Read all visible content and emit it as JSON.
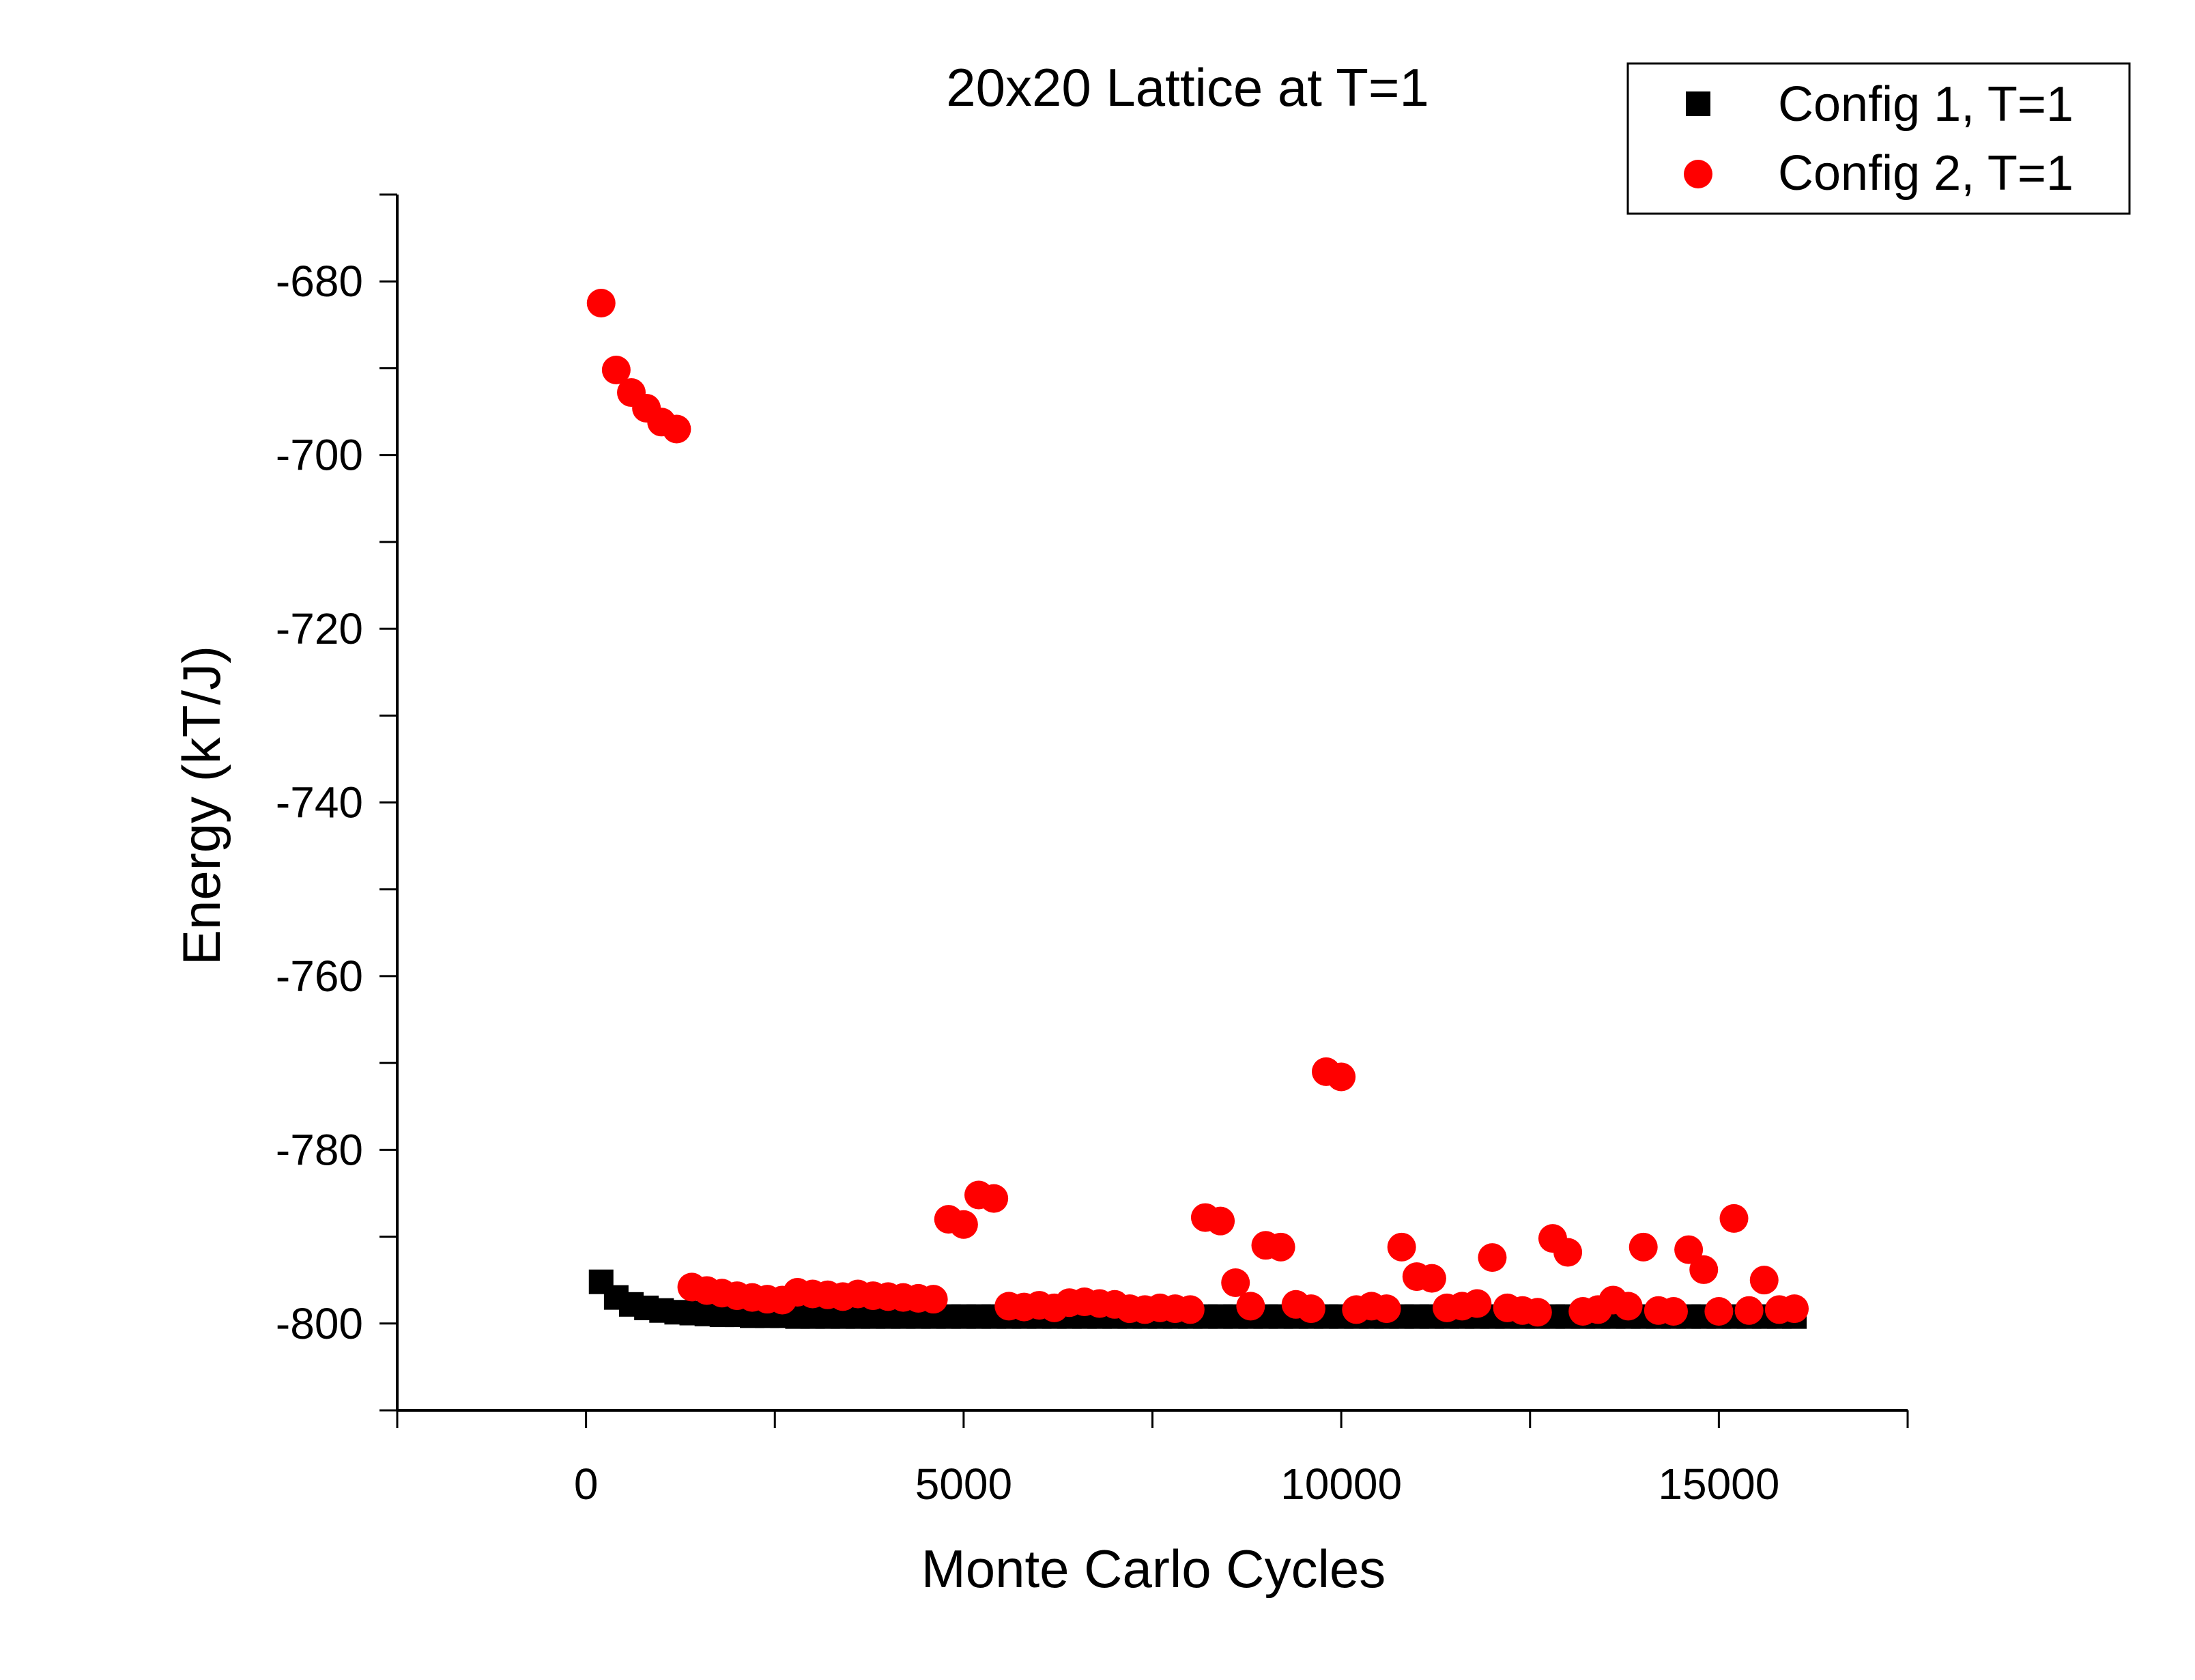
{
  "chart_data": {
    "type": "scatter",
    "title": "20x20 Lattice at T=1",
    "xlabel": "Monte Carlo Cycles",
    "ylabel": "Energy (kT/J)",
    "xlim": [
      -2500,
      17500
    ],
    "ylim": [
      -810,
      -670
    ],
    "xticks": [
      0,
      5000,
      10000,
      15000
    ],
    "yticks": [
      -680,
      -700,
      -720,
      -740,
      -760,
      -780,
      -800
    ],
    "grid": false,
    "legend_position": "top-right",
    "series": [
      {
        "name": "Config 1, T=1",
        "marker": "square",
        "color": "#000000",
        "x": [
          200,
          400,
          600,
          800,
          1000,
          1200,
          1400,
          1600,
          1800,
          2000,
          2200,
          2400,
          2600,
          2800,
          3000,
          3200,
          3400,
          3600,
          3800,
          4000,
          4200,
          4400,
          4600,
          4800,
          5000,
          5200,
          5400,
          5600,
          5800,
          6000,
          6200,
          6400,
          6600,
          6800,
          7000,
          7200,
          7400,
          7600,
          7800,
          8000,
          8200,
          8400,
          8600,
          8800,
          9000,
          9200,
          9400,
          9600,
          9800,
          10000,
          10200,
          10400,
          10600,
          10800,
          11000,
          11200,
          11400,
          11600,
          11800,
          12000,
          12200,
          12400,
          12600,
          12800,
          13000,
          13200,
          13400,
          13600,
          13800,
          14000,
          14200,
          14400,
          14600,
          14800,
          15000,
          15200,
          15400,
          15600,
          15800,
          16000
        ],
        "y": [
          -795.2,
          -797.0,
          -797.8,
          -798.2,
          -798.5,
          -798.7,
          -798.8,
          -798.9,
          -799.0,
          -799.0,
          -799.1,
          -799.1,
          -799.1,
          -799.2,
          -799.2,
          -799.2,
          -799.2,
          -799.2,
          -799.2,
          -799.2,
          -799.2,
          -799.2,
          -799.2,
          -799.2,
          -799.2,
          -799.2,
          -799.2,
          -799.2,
          -799.2,
          -799.2,
          -799.2,
          -799.2,
          -799.2,
          -799.2,
          -799.2,
          -799.2,
          -799.2,
          -799.2,
          -799.2,
          -799.2,
          -799.2,
          -799.2,
          -799.2,
          -799.2,
          -799.2,
          -799.2,
          -799.2,
          -799.2,
          -799.2,
          -799.2,
          -799.2,
          -799.2,
          -799.2,
          -799.2,
          -799.2,
          -799.2,
          -799.2,
          -799.2,
          -799.2,
          -799.2,
          -799.2,
          -799.2,
          -799.2,
          -799.2,
          -799.2,
          -799.2,
          -799.2,
          -799.2,
          -799.2,
          -799.2,
          -799.2,
          -799.2,
          -799.2,
          -799.2,
          -799.2,
          -799.2,
          -799.2,
          -799.2,
          -799.2,
          -799.2
        ]
      },
      {
        "name": "Config 2, T=1",
        "marker": "circle",
        "color": "#ff0000",
        "x": [
          200,
          400,
          600,
          800,
          1000,
          1200,
          1400,
          1600,
          1800,
          2000,
          2200,
          2400,
          2600,
          2800,
          3000,
          3200,
          3400,
          3600,
          3800,
          4000,
          4200,
          4400,
          4600,
          4800,
          5000,
          5200,
          5400,
          5600,
          5800,
          6000,
          6200,
          6400,
          6600,
          6800,
          7000,
          7200,
          7400,
          7600,
          7800,
          8000,
          8200,
          8400,
          8600,
          8800,
          9000,
          9200,
          9400,
          9600,
          9800,
          10000,
          10200,
          10400,
          10600,
          10800,
          11000,
          11200,
          11400,
          11600,
          11800,
          12000,
          12200,
          12400,
          12600,
          12800,
          13000,
          13200,
          13400,
          13600,
          13800,
          14000,
          14200,
          14400,
          14600,
          14800,
          15000,
          15200,
          15400,
          15600,
          15800,
          16000
        ],
        "y": [
          -682.5,
          -690.2,
          -692.8,
          -694.6,
          -696.2,
          -697.0,
          -795.8,
          -796.2,
          -796.5,
          -796.8,
          -797.0,
          -797.2,
          -797.3,
          -796.4,
          -796.6,
          -796.7,
          -796.9,
          -796.6,
          -796.8,
          -796.9,
          -797.0,
          -797.1,
          -797.2,
          -788.0,
          -788.6,
          -785.2,
          -785.6,
          -798.0,
          -798.1,
          -797.9,
          -798.2,
          -797.6,
          -797.5,
          -797.7,
          -797.8,
          -798.3,
          -798.4,
          -798.2,
          -798.3,
          -798.4,
          -787.8,
          -788.2,
          -795.3,
          -798.0,
          -791.0,
          -791.2,
          -797.8,
          -798.3,
          -771.0,
          -771.6,
          -798.4,
          -798.0,
          -798.3,
          -791.2,
          -794.6,
          -794.8,
          -798.2,
          -798.0,
          -797.7,
          -792.4,
          -798.2,
          -798.5,
          -798.7,
          -790.2,
          -791.8,
          -798.6,
          -798.4,
          -797.3,
          -798.0,
          -791.2,
          -798.5,
          -798.6,
          -791.5,
          -793.8,
          -798.6,
          -787.9,
          -798.5,
          -795.0,
          -798.4,
          -798.3
        ]
      }
    ]
  }
}
